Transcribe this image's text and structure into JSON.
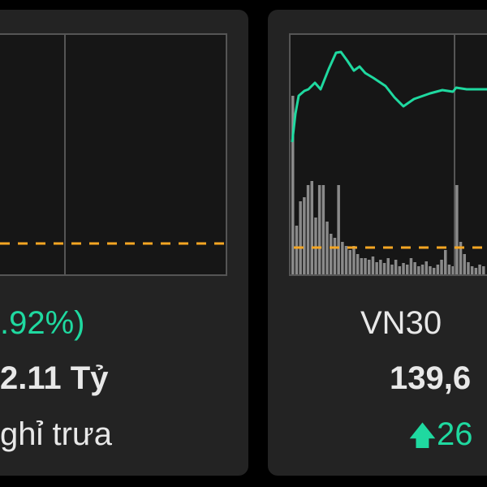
{
  "left_card": {
    "change_text": ".92%)",
    "value_text": "2.11 Tỷ",
    "status_text": "ghỉ trưa"
  },
  "right_card": {
    "index_name": "VN30",
    "index_value": "139,6",
    "change_icon": "arrow-up-icon",
    "change_text": "26"
  },
  "colors": {
    "up": "#1fd9a0",
    "reference_line": "#f5a623",
    "volume": "#8a8a8a",
    "card_bg": "#232323"
  }
}
